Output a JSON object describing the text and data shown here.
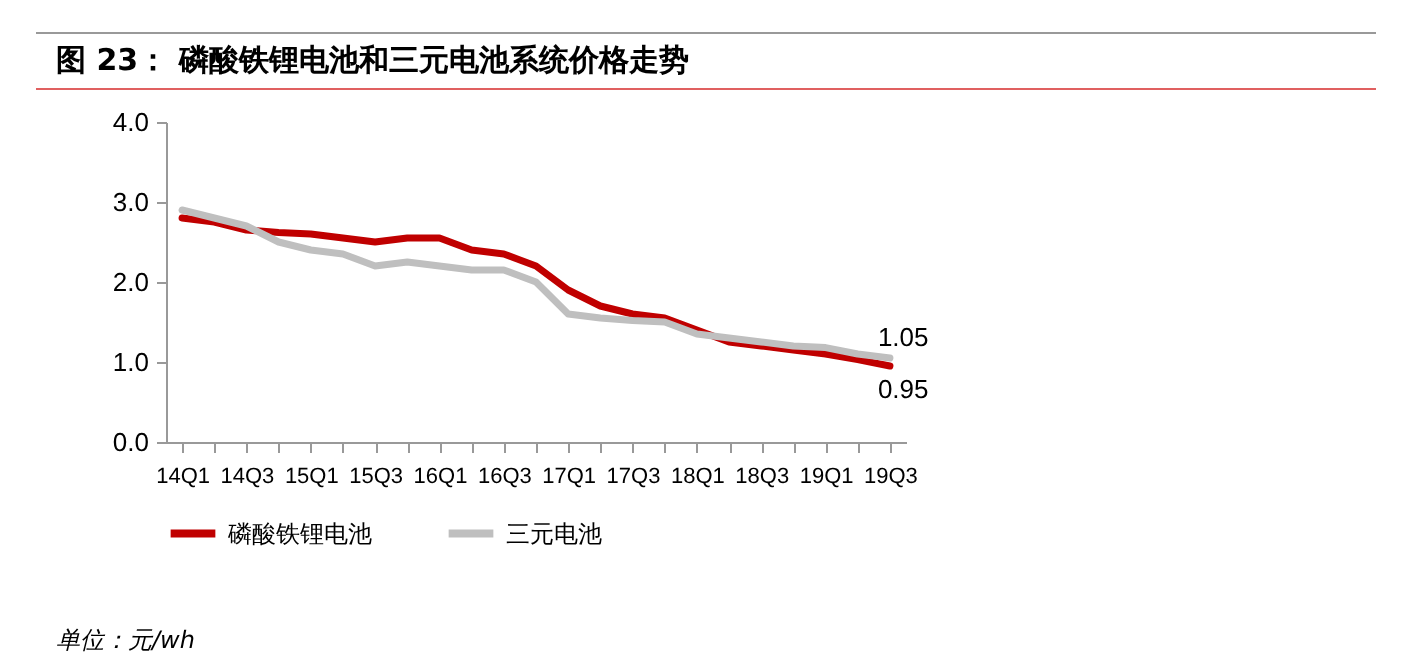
{
  "chart_data": {
    "type": "line",
    "title": "图 23：  磷酸铁锂电池和三元电池系统价格走势",
    "categories": [
      "14Q1",
      null,
      "14Q3",
      null,
      "15Q1",
      null,
      "15Q3",
      null,
      "16Q1",
      null,
      "16Q3",
      null,
      "17Q1",
      null,
      "17Q3",
      null,
      "18Q1",
      null,
      "18Q3",
      null,
      "19Q1",
      null,
      "19Q3"
    ],
    "series": [
      {
        "name": "磷酸铁锂电池",
        "color": "#c00000",
        "values": [
          2.8,
          2.75,
          2.65,
          2.62,
          2.6,
          2.55,
          2.5,
          2.55,
          2.55,
          2.4,
          2.35,
          2.2,
          1.9,
          1.7,
          1.6,
          1.55,
          1.4,
          1.25,
          1.2,
          1.15,
          1.1,
          1.03,
          0.95
        ],
        "value_labels": [
          null,
          null,
          null,
          null,
          null,
          null,
          null,
          null,
          null,
          null,
          null,
          null,
          null,
          null,
          null,
          null,
          null,
          null,
          null,
          null,
          null,
          null,
          "0.95"
        ]
      },
      {
        "name": "三元电池",
        "color": "#bfbfbf",
        "values": [
          2.9,
          2.8,
          2.7,
          2.5,
          2.4,
          2.35,
          2.2,
          2.25,
          2.2,
          2.15,
          2.15,
          2.0,
          1.6,
          1.55,
          1.52,
          1.5,
          1.35,
          1.3,
          1.25,
          1.2,
          1.18,
          1.1,
          1.05
        ],
        "value_labels": [
          null,
          null,
          null,
          null,
          null,
          null,
          null,
          null,
          null,
          null,
          null,
          null,
          null,
          null,
          null,
          null,
          null,
          null,
          null,
          null,
          null,
          null,
          "1.05"
        ]
      }
    ],
    "ylim": [
      0,
      4
    ],
    "yticks": [
      {
        "value": 0,
        "label": "0.0"
      },
      {
        "value": 1,
        "label": "1.0"
      },
      {
        "value": 2,
        "label": "2.0"
      },
      {
        "value": 3,
        "label": "3.0"
      },
      {
        "value": 4,
        "label": "4.0"
      }
    ],
    "grid": false,
    "legend": "bottom",
    "marker": "none",
    "line_style": "solid",
    "annotations": [
      "单位：元/wh"
    ]
  }
}
